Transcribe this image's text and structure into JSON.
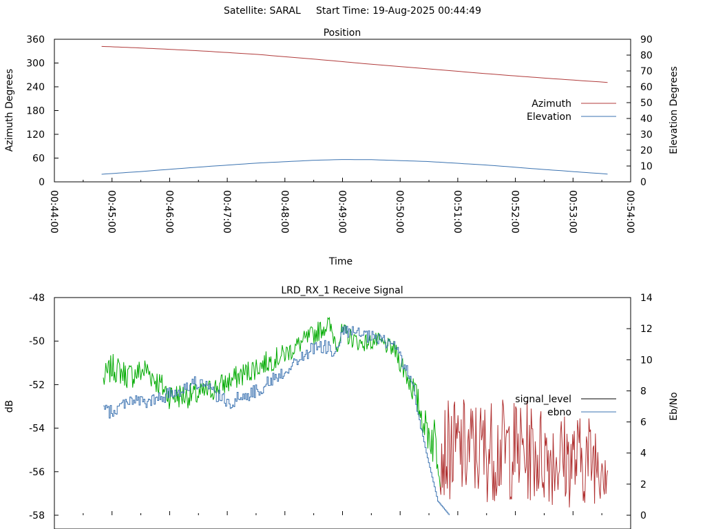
{
  "page": {
    "title": "Satellite: SARAL     Start Time: 19-Aug-2025 00:44:49"
  },
  "chart_data": [
    {
      "type": "line",
      "title": "Position",
      "xlabel": "Time",
      "ylabel": "Azimuth Degrees",
      "y2label": "Elevation Degrees",
      "x_ticks": [
        "00:44:00",
        "00:45:00",
        "00:46:00",
        "00:47:00",
        "00:48:00",
        "00:49:00",
        "00:50:00",
        "00:51:00",
        "00:52:00",
        "00:53:00",
        "00:54:00"
      ],
      "y_ticks": [
        "360",
        "300",
        "240",
        "180",
        "120",
        "60",
        "0"
      ],
      "y2_ticks": [
        "90",
        "80",
        "70",
        "60",
        "50",
        "40",
        "30",
        "20",
        "10",
        "0"
      ],
      "ylim": [
        0,
        360
      ],
      "y2lim": [
        0,
        90
      ],
      "xlim_minutes": [
        0,
        10
      ],
      "legend_position": "right",
      "series": [
        {
          "name": "Azimuth",
          "axis": "left",
          "color": "#b03a3a",
          "x_minutes": [
            0.82,
            1.5,
            2.5,
            3.5,
            4.5,
            5.5,
            6.5,
            7.5,
            8.5,
            9.6
          ],
          "values": [
            342,
            338,
            331,
            322,
            310,
            297,
            285,
            273,
            262,
            251
          ]
        },
        {
          "name": "Elevation",
          "axis": "right",
          "color": "#3a72b0",
          "x_minutes": [
            0.82,
            1.5,
            2.5,
            3.5,
            4.5,
            5.0,
            5.5,
            6.5,
            7.5,
            8.5,
            9.6
          ],
          "values": [
            4.8,
            6.5,
            9.3,
            11.8,
            13.6,
            14.1,
            14.0,
            12.8,
            10.6,
            7.8,
            4.9
          ]
        }
      ]
    },
    {
      "type": "line",
      "title": "LRD_RX_1 Receive Signal",
      "ylabel": "dB",
      "y2label": "Eb/No",
      "y_ticks": [
        "-48",
        "-50",
        "-52",
        "-54",
        "-56",
        "-58"
      ],
      "y2_ticks": [
        "14",
        "12",
        "10",
        "8",
        "6",
        "4",
        "2",
        "0"
      ],
      "ylim": [
        -58,
        -48
      ],
      "y2lim": [
        0,
        14
      ],
      "legend_position": "right",
      "series": [
        {
          "name": "signal_level",
          "legend_color": "#000000",
          "color_first": "#00aa00",
          "color_second": "#b03030",
          "x_minutes": [
            0.85,
            1.0,
            1.3,
            1.6,
            2.0,
            2.5,
            3.0,
            3.5,
            4.0,
            4.5,
            4.75,
            4.9,
            5.0,
            5.3,
            5.6,
            5.9,
            6.2,
            6.45,
            6.7,
            7.0,
            7.5,
            8.0,
            8.5,
            9.0,
            9.5,
            9.6
          ],
          "values": [
            -51.8,
            -51.2,
            -51.6,
            -51.3,
            -52.5,
            -52.5,
            -51.9,
            -51.2,
            -50.6,
            -49.7,
            -49.2,
            -50.1,
            -49.6,
            -50.1,
            -50.0,
            -50.4,
            -52.0,
            -54.0,
            -55.0,
            -55.0,
            -55.0,
            -55.0,
            -55.2,
            -55.5,
            -55.3,
            -55.5
          ],
          "split_at_minute": 6.7,
          "amplitude": [
            0.8,
            0.8,
            0.8,
            0.8,
            0.8,
            0.7,
            0.7,
            0.7,
            0.6,
            0.6,
            0.6,
            0.6,
            0.6,
            0.5,
            0.5,
            0.5,
            0.9,
            1.0,
            2.2,
            2.4,
            2.4,
            2.4,
            2.3,
            2.2,
            2.1,
            2.1
          ]
        },
        {
          "name": "ebno",
          "axis": "right",
          "color": "#3a72b0",
          "x_minutes": [
            0.85,
            1.0,
            1.3,
            1.6,
            2.0,
            2.5,
            3.0,
            3.5,
            4.0,
            4.5,
            4.75,
            4.9,
            5.0,
            5.3,
            5.6,
            5.9,
            6.2,
            6.45,
            6.65,
            6.85
          ],
          "values": [
            6.8,
            6.6,
            7.5,
            7.2,
            7.8,
            8.6,
            7.2,
            8.0,
            9.3,
            10.8,
            10.8,
            10.4,
            11.9,
            11.6,
            11.3,
            11.0,
            8.5,
            4.0,
            0.9,
            0.0
          ]
        }
      ]
    }
  ]
}
